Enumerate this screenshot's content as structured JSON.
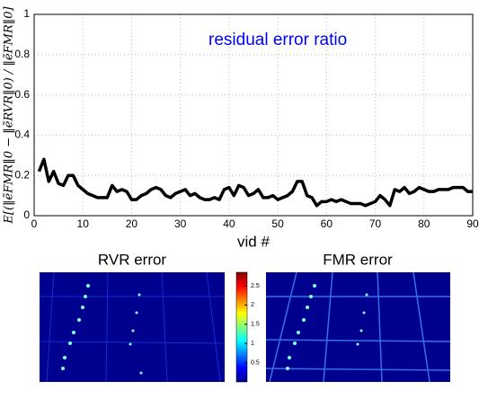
{
  "chart_data": [
    {
      "type": "line",
      "title": "residual error ratio",
      "title_color": "#0000ff",
      "xlabel": "vid #",
      "ylabel": "E[(‖ẽFMR‖0 − ‖ẽRVR‖0) / ‖ẽFMR‖0]",
      "x": [
        1,
        2,
        3,
        4,
        5,
        6,
        7,
        8,
        9,
        10,
        11,
        12,
        13,
        14,
        15,
        16,
        17,
        18,
        19,
        20,
        21,
        22,
        23,
        24,
        25,
        26,
        27,
        28,
        29,
        30,
        31,
        32,
        33,
        34,
        35,
        36,
        37,
        38,
        39,
        40,
        41,
        42,
        43,
        44,
        45,
        46,
        47,
        48,
        49,
        50,
        51,
        52,
        53,
        54,
        55,
        56,
        57,
        58,
        59,
        60,
        61,
        62,
        63,
        64,
        65,
        66,
        67,
        68,
        69,
        70,
        71,
        72,
        73,
        74,
        75,
        76,
        77,
        78,
        79,
        80,
        81,
        82,
        83,
        84,
        85,
        86,
        87,
        88,
        89,
        90
      ],
      "values": [
        0.22,
        0.28,
        0.17,
        0.22,
        0.16,
        0.15,
        0.2,
        0.2,
        0.15,
        0.13,
        0.11,
        0.1,
        0.09,
        0.09,
        0.09,
        0.15,
        0.12,
        0.13,
        0.12,
        0.08,
        0.08,
        0.1,
        0.11,
        0.13,
        0.14,
        0.13,
        0.1,
        0.09,
        0.11,
        0.12,
        0.13,
        0.1,
        0.11,
        0.09,
        0.08,
        0.08,
        0.09,
        0.08,
        0.13,
        0.14,
        0.1,
        0.15,
        0.14,
        0.1,
        0.11,
        0.13,
        0.09,
        0.09,
        0.1,
        0.08,
        0.09,
        0.1,
        0.12,
        0.17,
        0.17,
        0.1,
        0.09,
        0.05,
        0.07,
        0.07,
        0.08,
        0.07,
        0.08,
        0.07,
        0.06,
        0.06,
        0.06,
        0.05,
        0.06,
        0.07,
        0.1,
        0.08,
        0.05,
        0.13,
        0.12,
        0.14,
        0.11,
        0.12,
        0.14,
        0.13,
        0.12,
        0.12,
        0.13,
        0.13,
        0.13,
        0.14,
        0.14,
        0.14,
        0.12,
        0.12
      ],
      "color": "#000000",
      "xlim": [
        0,
        90
      ],
      "xticks": [
        0,
        10,
        20,
        30,
        40,
        50,
        60,
        70,
        80,
        90
      ],
      "ylim": [
        0,
        1
      ],
      "yticks": [
        0,
        0.2,
        0.4,
        0.6,
        0.8,
        1
      ],
      "grid": true
    },
    {
      "type": "colorbar",
      "colormap": "jet",
      "ylim": [
        0,
        2.85
      ],
      "yticks": [
        0.5,
        1,
        1.5,
        2,
        2.5
      ]
    }
  ],
  "images": {
    "left_title": "RVR error",
    "right_title": "FMR error"
  }
}
